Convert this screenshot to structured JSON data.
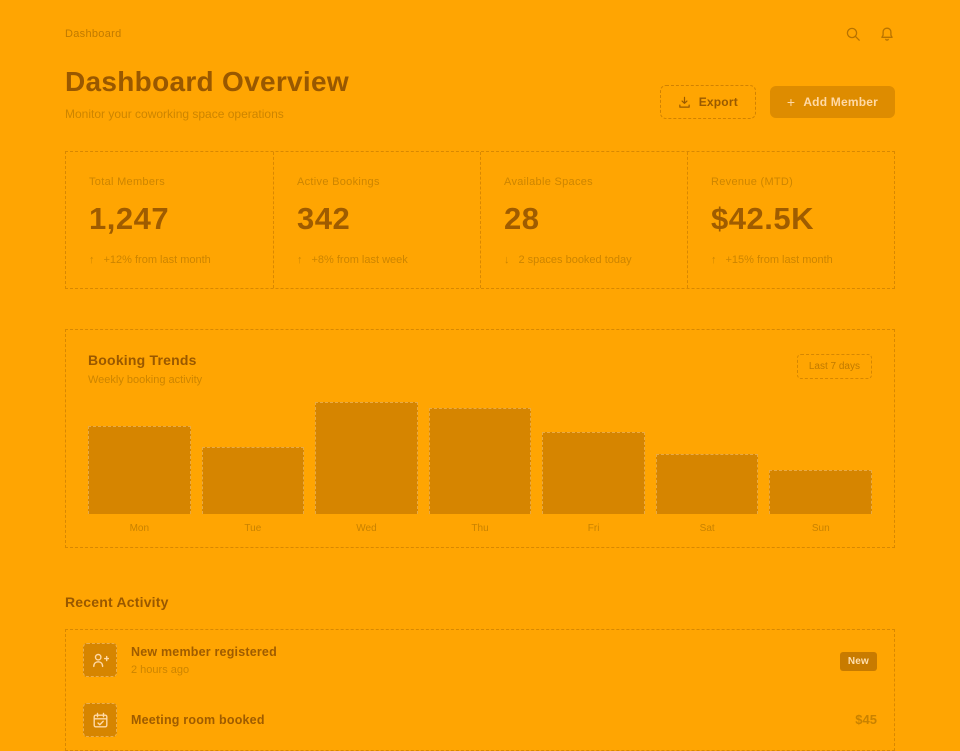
{
  "colors": {
    "background": "#FFA502",
    "ink": "#995800",
    "muted": "#CD8500",
    "accent_fill": "#D68500",
    "button_bg": "#DE8C00",
    "button_text": "#FFD9A6"
  },
  "topbar": {
    "breadcrumb": "Dashboard",
    "icons": [
      "search-icon",
      "bell-icon"
    ]
  },
  "header": {
    "title": "Dashboard Overview",
    "subtitle": "Monitor your coworking space operations",
    "export_label": "Export",
    "add_member_label": "Add Member",
    "add_member_plus": "+"
  },
  "stats": [
    {
      "label": "Total Members",
      "value": "1,247",
      "trend": "up",
      "change": "+12% from last month"
    },
    {
      "label": "Active Bookings",
      "value": "342",
      "trend": "up",
      "change": "+8% from last week"
    },
    {
      "label": "Available Spaces",
      "value": "28",
      "trend": "down",
      "change": "2 spaces booked today"
    },
    {
      "label": "Revenue (MTD)",
      "value": "$42.5K",
      "trend": "up",
      "change": "+15% from last month"
    }
  ],
  "chart_data": {
    "type": "bar",
    "title": "Booking Trends",
    "subtitle": "Weekly booking activity",
    "range_label": "Last 7 days",
    "categories": [
      "Mon",
      "Tue",
      "Wed",
      "Thu",
      "Fri",
      "Sat",
      "Sun"
    ],
    "values": [
      79,
      60,
      100,
      95,
      73,
      54,
      39
    ],
    "ylim": [
      0,
      100
    ],
    "grid": false,
    "legend": false,
    "xlabel": "",
    "ylabel": ""
  },
  "activity": {
    "title": "Recent Activity",
    "items": [
      {
        "icon": "user-plus-icon",
        "title": "New member registered",
        "subtitle": "2 hours ago",
        "meta": "New",
        "meta_type": "badge"
      },
      {
        "icon": "calendar-check-icon",
        "title": "Meeting room booked",
        "subtitle": "",
        "meta": "$45",
        "meta_type": "price"
      }
    ]
  }
}
